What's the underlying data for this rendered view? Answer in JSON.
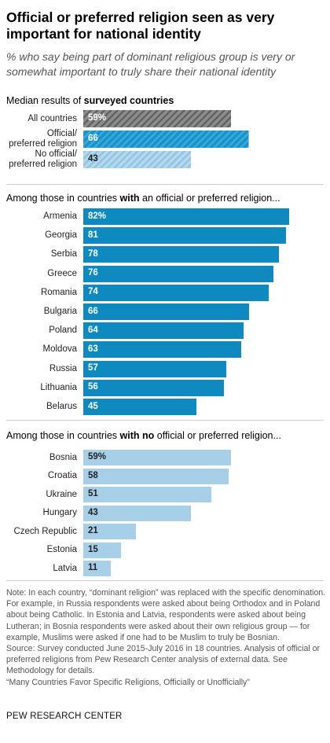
{
  "title": "Official or preferred religion seen as very important for national identity",
  "subtitle": "% who say being part of dominant religious group is very or somewhat important to truly share their national identity",
  "chart_data": [
    {
      "type": "bar",
      "title": "Median results of surveyed countries",
      "title_plain": "Median results of ",
      "title_bold": "surveyed countries",
      "categories": [
        "All countries",
        "Official/ preferred religion",
        "No official/ preferred religion"
      ],
      "values": [
        59,
        66,
        43
      ],
      "value_labels": [
        "59%",
        "66",
        "43"
      ],
      "colors": [
        "#7a7a7a",
        "#1a8ec0",
        "#a9cfe6"
      ],
      "patterns": [
        "hatch-dark",
        "hatch-blue",
        "hatch-light"
      ]
    },
    {
      "type": "bar",
      "title": "Among those in countries with an official or preferred religion...",
      "title_plain": "Among those in countries ",
      "title_bold": "with",
      "title_rest": " an official or preferred religion...",
      "categories": [
        "Armenia",
        "Georgia",
        "Serbia",
        "Greece",
        "Romania",
        "Bulgaria",
        "Poland",
        "Moldova",
        "Russia",
        "Lithuania",
        "Belarus"
      ],
      "values": [
        82,
        81,
        78,
        76,
        74,
        66,
        64,
        63,
        57,
        56,
        45
      ],
      "value_labels": [
        "82%",
        "81",
        "78",
        "76",
        "74",
        "66",
        "64",
        "63",
        "57",
        "56",
        "45"
      ],
      "color": "#0f8ac0",
      "label_color": "#ffffff"
    },
    {
      "type": "bar",
      "title": "Among those in countries with no official or preferred religion...",
      "title_plain": "Among those in countries ",
      "title_bold": "with no",
      "title_rest": " official or preferred religion...",
      "categories": [
        "Bosnia",
        "Croatia",
        "Ukraine",
        "Hungary",
        "Czech Republic",
        "Estonia",
        "Latvia"
      ],
      "values": [
        59,
        58,
        51,
        43,
        21,
        15,
        11
      ],
      "value_labels": [
        "59%",
        "58",
        "51",
        "43",
        "21",
        "15",
        "11"
      ],
      "color": "#a7cfe8",
      "label_color": "#222222"
    }
  ],
  "notes": [
    "Note: In each country, “dominant religion” was replaced with the specific denomination. For example, in Russia respondents were asked about being Orthodox and in Poland about being Catholic. In Estonia and Latvia, respondents were asked about being Lutheran; in Bosnia respondents were asked about their own religious group — for example, Muslims were asked if one had to be Muslim to truly be Bosnian.",
    "Source: Survey conducted June 2015-July 2016 in 18 countries. Analysis of official or preferred religions from Pew Research Center analysis of external data. See Methodology for details.",
    "“Many Countries Favor Specific Religions, Officially or Unofficially”"
  ],
  "brand": "PEW RESEARCH CENTER"
}
